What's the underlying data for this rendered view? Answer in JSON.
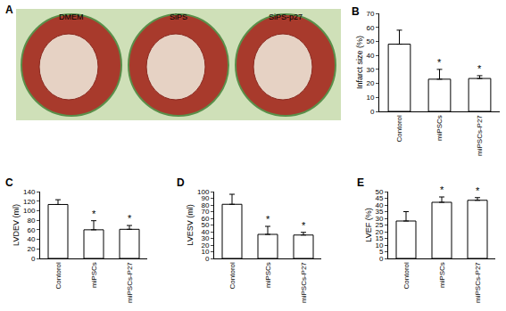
{
  "panel_a": {
    "label": "A",
    "captions": [
      "DMEM",
      "SiPS",
      "SiPS-p27"
    ]
  },
  "chart_data": [
    {
      "type": "bar",
      "title": "B",
      "y_label": "Infarct size (%)",
      "categories": [
        "Contorol",
        "miPSCs",
        "miPSCs-P27"
      ],
      "values": [
        48,
        23,
        23.5
      ],
      "errors": [
        10,
        7,
        2
      ],
      "color": "#ffffff",
      "ylim": [
        0,
        70
      ],
      "yticks": [
        0,
        10,
        20,
        30,
        40,
        50,
        60,
        70
      ],
      "annotations": [
        {
          "category": "miPSCs",
          "text": "*"
        },
        {
          "category": "miPSCs-P27",
          "text": "*"
        }
      ]
    },
    {
      "type": "bar",
      "title": "C",
      "y_label": "LVDEV (ml)",
      "categories": [
        "Contorol",
        "miPSCs",
        "miPSCs-P27"
      ],
      "values": [
        113,
        60,
        61
      ],
      "errors": [
        10,
        19,
        8
      ],
      "color": "#ffffff",
      "ylim": [
        0,
        140
      ],
      "yticks": [
        0,
        20,
        40,
        60,
        80,
        100,
        120,
        140
      ],
      "annotations": [
        {
          "category": "miPSCs",
          "text": "*"
        },
        {
          "category": "miPSCs-P27",
          "text": "*"
        }
      ]
    },
    {
      "type": "bar",
      "title": "D",
      "y_label": "LVESV (ml)",
      "categories": [
        "Contorol",
        "miPSCs",
        "miPSCs-P27"
      ],
      "values": [
        81,
        36,
        35
      ],
      "errors": [
        15,
        12,
        4
      ],
      "color": "#ffffff",
      "ylim": [
        0,
        100
      ],
      "yticks": [
        0,
        10,
        20,
        30,
        40,
        50,
        60,
        70,
        80,
        90,
        100
      ],
      "annotations": [
        {
          "category": "miPSCs",
          "text": "*"
        },
        {
          "category": "miPSCs-P27",
          "text": "*"
        }
      ]
    },
    {
      "type": "bar",
      "title": "E",
      "y_label": "LVEF (%)",
      "categories": [
        "Contorol",
        "miPSCs",
        "miPSCs-P27"
      ],
      "values": [
        28,
        42,
        43.5
      ],
      "errors": [
        7,
        4,
        2
      ],
      "color": "#ffffff",
      "ylim": [
        0,
        50
      ],
      "yticks": [
        0,
        5,
        10,
        15,
        20,
        25,
        30,
        35,
        40,
        45,
        50
      ],
      "annotations": [
        {
          "category": "miPSCs",
          "text": "*"
        },
        {
          "category": "miPSCs-P27",
          "text": "*"
        }
      ]
    }
  ]
}
